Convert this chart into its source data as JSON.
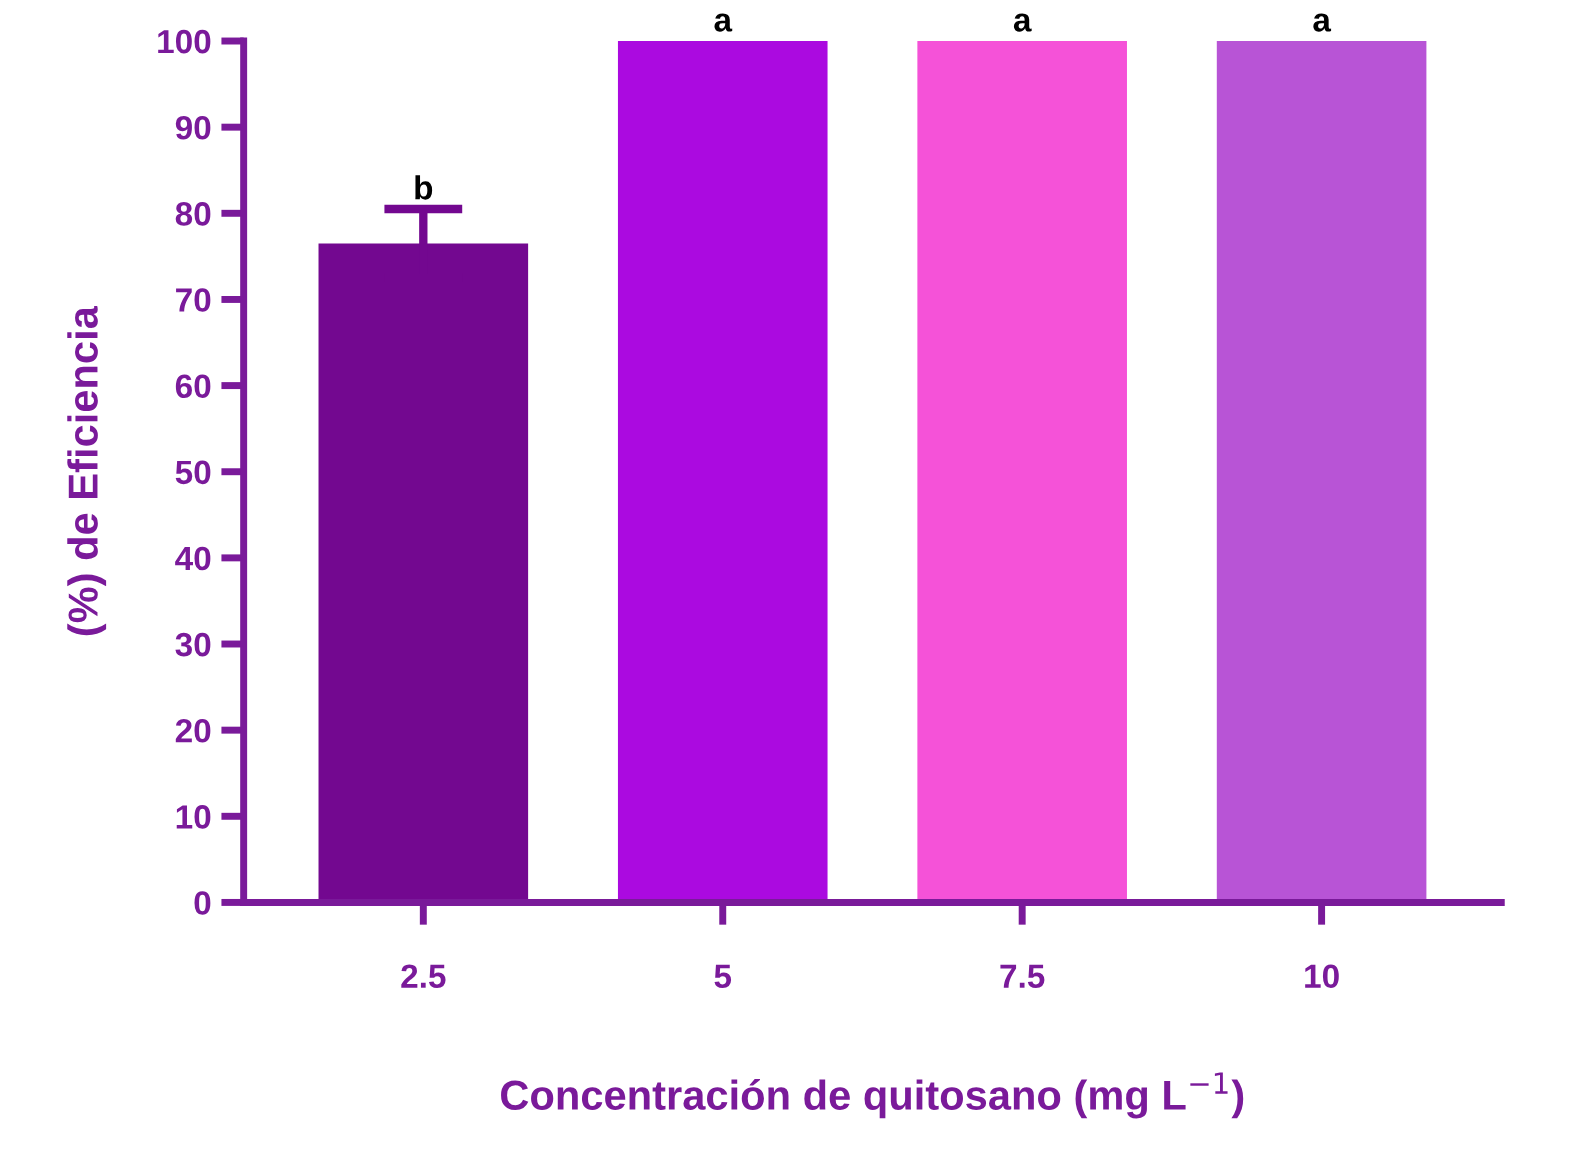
{
  "chart_data": {
    "type": "bar",
    "xlabel": "Concentración de quitosano (mg L$^{−1}$)",
    "ylabel": "(%) de Eficiencia",
    "categories": [
      "2.5",
      "5",
      "7.5",
      "10"
    ],
    "values": [
      76.5,
      100,
      100,
      100
    ],
    "colors": [
      "#730890",
      "#ab0ae0",
      "#f552d8",
      "#b854d6"
    ],
    "errors": [
      4,
      null,
      null,
      null
    ],
    "ylim": [
      0,
      100
    ],
    "yticks": [
      0,
      10,
      20,
      30,
      40,
      50,
      60,
      70,
      80,
      90,
      100
    ],
    "grid": false,
    "annotations": [
      {
        "text": "b",
        "x": "2.5",
        "y": 80.5
      },
      {
        "text": "a",
        "x": "5",
        "y": 100
      },
      {
        "text": "a",
        "x": "7.5",
        "y": 100
      },
      {
        "text": "a",
        "x": "10",
        "y": 100
      }
    ]
  }
}
